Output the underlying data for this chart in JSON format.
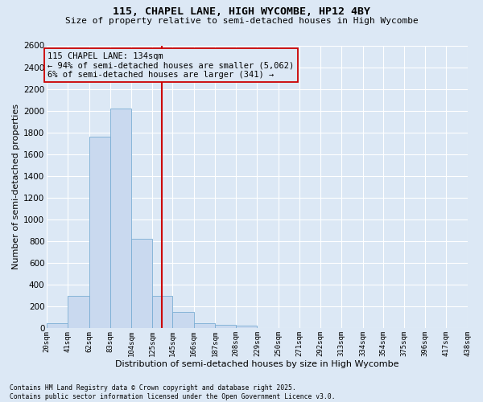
{
  "title1": "115, CHAPEL LANE, HIGH WYCOMBE, HP12 4BY",
  "title2": "Size of property relative to semi-detached houses in High Wycombe",
  "xlabel": "Distribution of semi-detached houses by size in High Wycombe",
  "ylabel": "Number of semi-detached properties",
  "annotation_line1": "115 CHAPEL LANE: 134sqm",
  "annotation_line2": "← 94% of semi-detached houses are smaller (5,062)",
  "annotation_line3": "6% of semi-detached houses are larger (341) →",
  "footer1": "Contains HM Land Registry data © Crown copyright and database right 2025.",
  "footer2": "Contains public sector information licensed under the Open Government Licence v3.0.",
  "bin_edges": [
    20,
    41,
    62,
    83,
    104,
    125,
    145,
    166,
    187,
    208,
    229,
    250,
    271,
    292,
    313,
    334,
    354,
    375,
    396,
    417,
    438
  ],
  "bin_labels": [
    "20sqm",
    "41sqm",
    "62sqm",
    "83sqm",
    "104sqm",
    "125sqm",
    "145sqm",
    "166sqm",
    "187sqm",
    "208sqm",
    "229sqm",
    "250sqm",
    "271sqm",
    "292sqm",
    "313sqm",
    "334sqm",
    "354sqm",
    "375sqm",
    "396sqm",
    "417sqm",
    "438sqm"
  ],
  "counts": [
    50,
    300,
    1760,
    2020,
    820,
    295,
    150,
    45,
    35,
    25,
    0,
    0,
    0,
    0,
    0,
    0,
    0,
    0,
    0,
    0
  ],
  "bar_color": "#c9d9ef",
  "bar_edgecolor": "#7aadd4",
  "vline_color": "#cc0000",
  "vline_x": 134,
  "annotation_box_edgecolor": "#cc0000",
  "background_color": "#dce8f5",
  "grid_color": "#ffffff",
  "ylim": [
    0,
    2600
  ],
  "yticks": [
    0,
    200,
    400,
    600,
    800,
    1000,
    1200,
    1400,
    1600,
    1800,
    2000,
    2200,
    2400,
    2600
  ]
}
